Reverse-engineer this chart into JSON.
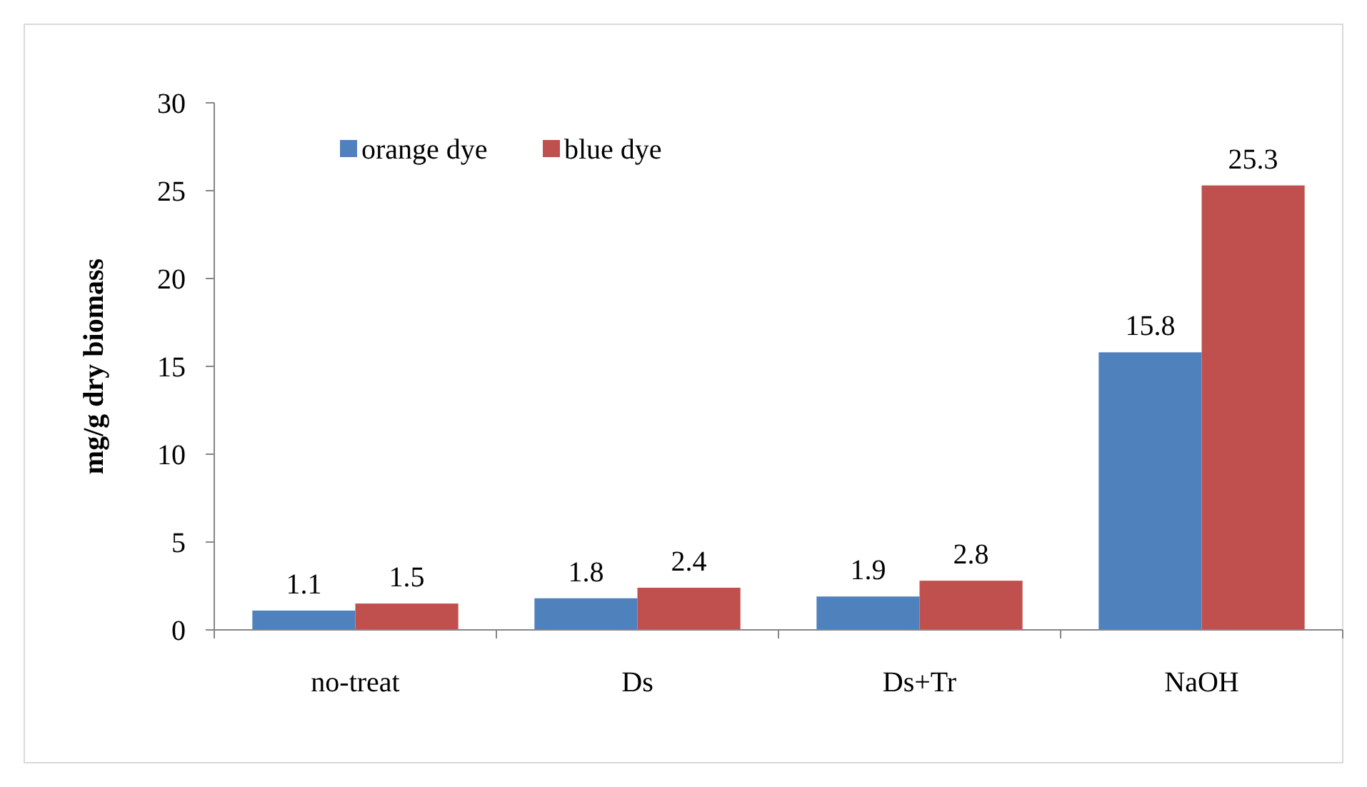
{
  "chart_data": {
    "type": "bar",
    "ylabel": "mg/g dry biomass",
    "categories": [
      "no-treat",
      "Ds",
      "Ds+Tr",
      "NaOH"
    ],
    "series": [
      {
        "name": "orange dye",
        "color": "#4f81bd",
        "values": [
          1.1,
          1.8,
          1.9,
          15.8
        ]
      },
      {
        "name": "blue dye",
        "color": "#c0504d",
        "values": [
          1.5,
          2.4,
          2.8,
          25.3
        ]
      }
    ],
    "ylim": [
      0,
      30
    ],
    "yticks": [
      0,
      5,
      10,
      15,
      20,
      25,
      30
    ],
    "data_labels": true,
    "legend": "top left",
    "grid": false
  }
}
